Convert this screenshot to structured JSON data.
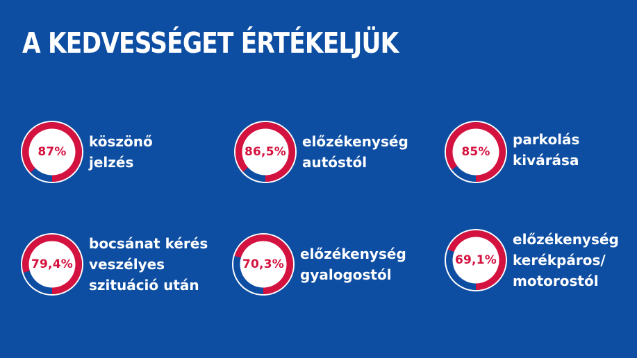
{
  "title": "A KEDVESSÉGET ÉRTÉKELJÜK",
  "colors": {
    "background": "#0d4ea3",
    "ring_value": "#d4123f",
    "ring_rest": "#0d4ea3",
    "ring_inner": "#ffffff",
    "text": "#ffffff"
  },
  "chart_data": {
    "type": "pie",
    "title": "A KEDVESSÉGET ÉRTÉKELJÜK",
    "unit": "%",
    "items": [
      {
        "value": 87,
        "display": "87%",
        "label_lines": [
          "köszönő",
          "jelzés"
        ]
      },
      {
        "value": 86.5,
        "display": "86,5%",
        "label_lines": [
          "előzékenység",
          "autóstól"
        ]
      },
      {
        "value": 85,
        "display": "85%",
        "label_lines": [
          "parkolás",
          "kivárása"
        ]
      },
      {
        "value": 79.4,
        "display": "79,4%",
        "label_lines": [
          "bocsánat kérés",
          "veszélyes",
          "szituáció után"
        ]
      },
      {
        "value": 70.3,
        "display": "70,3%",
        "label_lines": [
          "előzékenység",
          "gyalogostól"
        ]
      },
      {
        "value": 69.1,
        "display": "69,1%",
        "label_lines": [
          "előzékenység",
          "kerékpáros/",
          "motorostól"
        ]
      }
    ]
  }
}
